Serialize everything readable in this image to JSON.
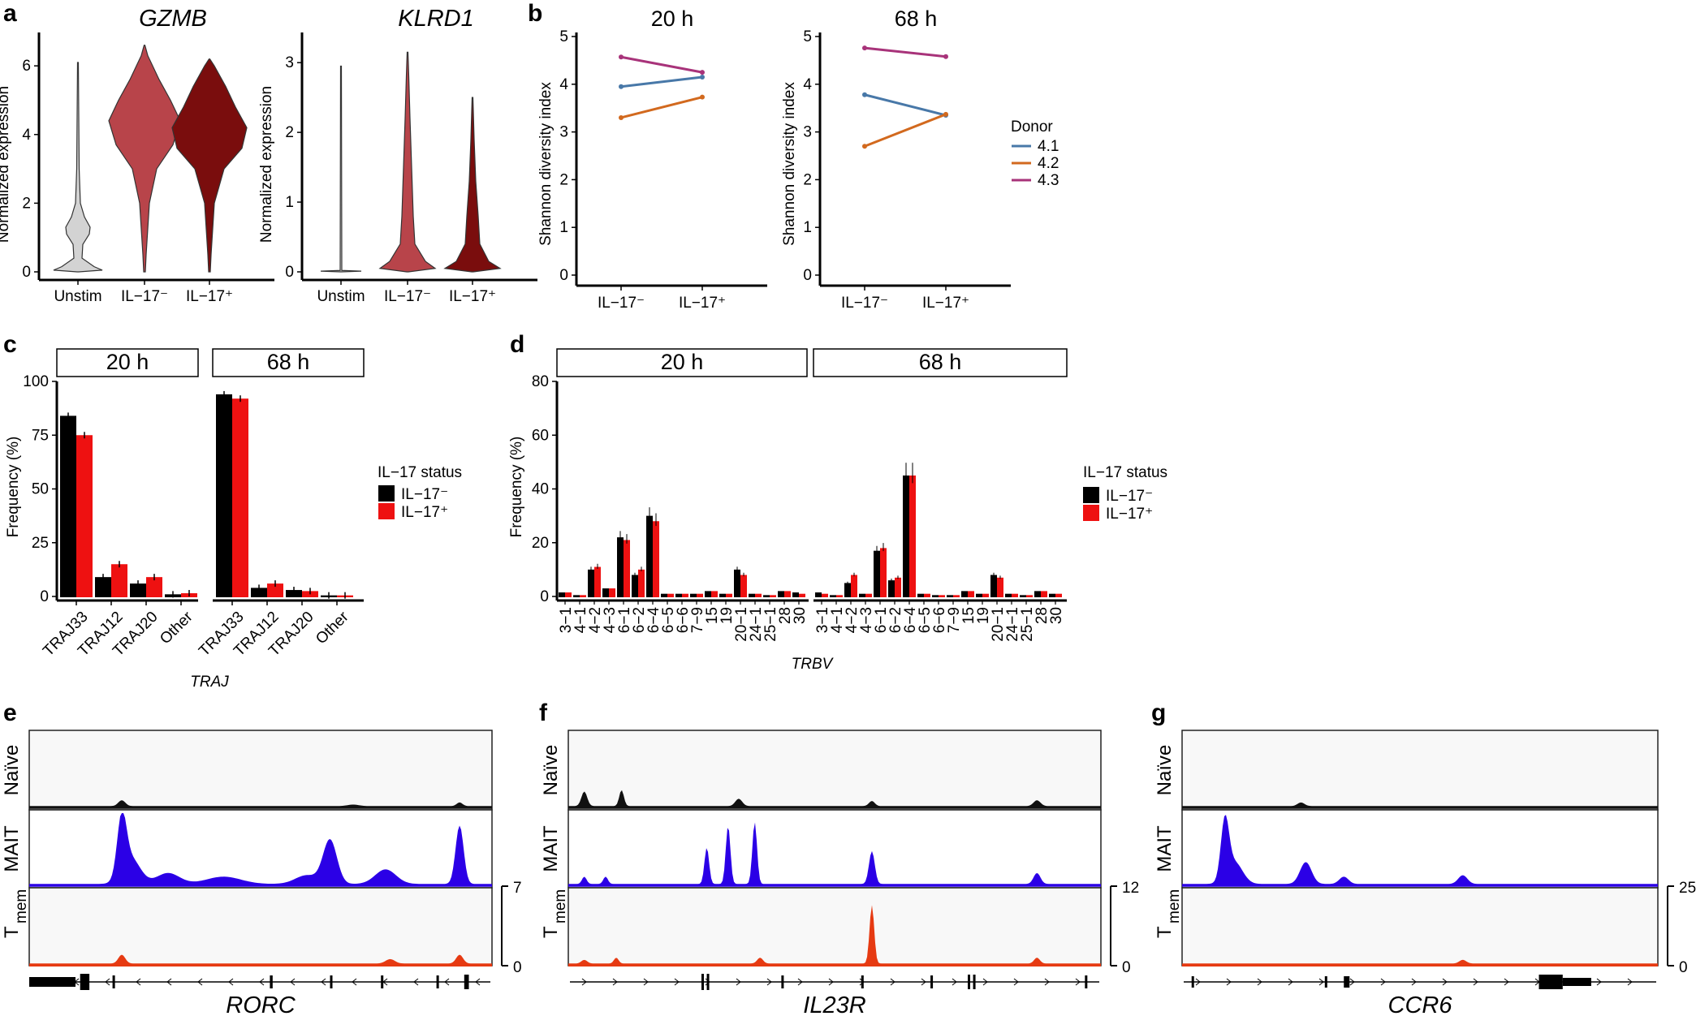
{
  "panels": {
    "a": "a",
    "b": "b",
    "c": "c",
    "d": "d",
    "e": "e",
    "f": "f",
    "g": "g"
  },
  "colors": {
    "unstim": "#d3d3d3",
    "il17neg_violin": "#b8444a",
    "il17pos_violin": "#7a0d0d",
    "donor41": "#4878a8",
    "donor42": "#d2691e",
    "donor43": "#a8337a",
    "bar_neg": "#000000",
    "bar_pos": "#ee1111",
    "naive": "#111111",
    "mait": "#2b00e6",
    "tmem": "#e63a12"
  },
  "panel_a": {
    "ylabel": "Normalized expression",
    "categories": [
      "Unstim",
      "IL−17⁻",
      "IL−17⁺"
    ],
    "gzmb": {
      "gene": "GZMB",
      "ticks": [
        "0",
        "2",
        "4",
        "6"
      ]
    },
    "klrd1": {
      "gene": "KLRD1",
      "ticks": [
        "0",
        "1",
        "2",
        "3"
      ]
    }
  },
  "panel_b": {
    "ylabel": "Shannon diversity index",
    "ticks": [
      "0",
      "1",
      "2",
      "3",
      "4",
      "5"
    ],
    "categories": [
      "IL−17⁻",
      "IL−17⁺"
    ],
    "legend_title": "Donor",
    "donors": [
      "4.1",
      "4.2",
      "4.3"
    ]
  },
  "panel_c": {
    "strips": [
      "20 h",
      "68 h"
    ],
    "ylabel": "Frequency (%)",
    "xlabel": "TRAJ",
    "ticks": [
      "0",
      "25",
      "50",
      "75",
      "100"
    ],
    "categories": [
      "TRAJ33",
      "TRAJ12",
      "TRAJ20",
      "Other"
    ],
    "legend_title": "IL−17 status",
    "legend": [
      "IL−17⁻",
      "IL−17⁺"
    ]
  },
  "panel_d": {
    "strips": [
      "20 h",
      "68 h"
    ],
    "ylabel": "Frequency (%)",
    "xlabel": "TRBV",
    "ticks": [
      "0",
      "20",
      "40",
      "60",
      "80"
    ],
    "categories": [
      "3−1",
      "4−1",
      "4−2",
      "4−3",
      "6−1",
      "6−2",
      "6−4",
      "6−5",
      "6−6",
      "7−9",
      "15",
      "19",
      "20−1",
      "24−1",
      "25−1",
      "28",
      "30"
    ],
    "legend_title": "IL−17 status",
    "legend": [
      "IL−17⁻",
      "IL−17⁺"
    ]
  },
  "panel_tracks": {
    "rows": [
      "Naïve",
      "MAIT",
      "T"
    ],
    "rows_sub": "mem",
    "e": {
      "gene": "RORC",
      "scale_max": "7",
      "scale_min": "0"
    },
    "f": {
      "gene": "IL23R",
      "scale_max": "12",
      "scale_min": "0"
    },
    "g": {
      "gene": "CCR6",
      "scale_max": "25",
      "scale_min": "0"
    }
  },
  "chart_data": [
    {
      "type": "violin",
      "title": "GZMB",
      "ylabel": "Normalized expression",
      "categories": [
        "Unstim",
        "IL−17⁻",
        "IL−17⁺"
      ],
      "ylim": [
        0,
        6.5
      ],
      "median": [
        0.2,
        4.5,
        4.2
      ]
    },
    {
      "type": "violin",
      "title": "KLRD1",
      "ylabel": "Normalized expression",
      "categories": [
        "Unstim",
        "IL−17⁻",
        "IL−17⁺"
      ],
      "ylim": [
        0,
        3.2
      ],
      "median": [
        0,
        0.1,
        0.1
      ]
    },
    {
      "type": "line",
      "title": "20 h",
      "ylabel": "Shannon diversity index",
      "x": [
        "IL−17⁻",
        "IL−17⁺"
      ],
      "ylim": [
        0,
        5
      ],
      "series": [
        {
          "name": "4.1",
          "values": [
            3.95,
            4.15
          ]
        },
        {
          "name": "4.2",
          "values": [
            3.3,
            3.73
          ]
        },
        {
          "name": "4.3",
          "values": [
            4.57,
            4.25
          ]
        }
      ]
    },
    {
      "type": "line",
      "title": "68 h",
      "ylabel": "Shannon diversity index",
      "x": [
        "IL−17⁻",
        "IL−17⁺"
      ],
      "ylim": [
        0,
        5
      ],
      "series": [
        {
          "name": "4.1",
          "values": [
            3.78,
            3.35
          ]
        },
        {
          "name": "4.2",
          "values": [
            2.7,
            3.37
          ]
        },
        {
          "name": "4.3",
          "values": [
            4.76,
            4.58
          ]
        }
      ]
    },
    {
      "type": "bar",
      "facets": [
        "20 h",
        "68 h"
      ],
      "xlabel": "TRAJ",
      "ylabel": "Frequency (%)",
      "ylim": [
        0,
        100
      ],
      "categories": [
        "TRAJ33",
        "TRAJ12",
        "TRAJ20",
        "Other"
      ],
      "series": [
        {
          "name": "IL−17⁻",
          "facet": "20 h",
          "values": [
            84,
            9,
            6,
            1
          ]
        },
        {
          "name": "IL−17⁺",
          "facet": "20 h",
          "values": [
            75,
            15,
            9,
            1.5
          ]
        },
        {
          "name": "IL−17⁻",
          "facet": "68 h",
          "values": [
            94,
            4,
            3,
            0.5
          ]
        },
        {
          "name": "IL−17⁺",
          "facet": "68 h",
          "values": [
            92,
            6,
            2.5,
            0.5
          ]
        }
      ]
    },
    {
      "type": "bar",
      "facets": [
        "20 h",
        "68 h"
      ],
      "xlabel": "TRBV",
      "ylabel": "Frequency (%)",
      "ylim": [
        0,
        80
      ],
      "categories": [
        "3−1",
        "4−1",
        "4−2",
        "4−3",
        "6−1",
        "6−2",
        "6−4",
        "6−5",
        "6−6",
        "7−9",
        "15",
        "19",
        "20−1",
        "24−1",
        "25−1",
        "28",
        "30"
      ],
      "series": [
        {
          "name": "IL−17⁻",
          "facet": "20 h",
          "values": [
            1.5,
            0.5,
            10,
            3,
            22,
            8,
            30,
            1,
            1,
            1,
            2,
            1,
            10,
            1,
            0.5,
            2,
            1.5
          ]
        },
        {
          "name": "IL−17⁺",
          "facet": "20 h",
          "values": [
            1.5,
            0.5,
            11,
            3,
            21,
            10,
            28,
            1,
            1,
            1,
            2,
            1,
            8,
            1,
            0.5,
            2,
            1
          ]
        },
        {
          "name": "IL−17⁻",
          "facet": "68 h",
          "values": [
            1.5,
            0.5,
            5,
            1,
            17,
            6,
            45,
            1,
            0.5,
            0.5,
            2,
            1,
            8,
            1,
            0.5,
            2,
            1
          ]
        },
        {
          "name": "IL−17⁺",
          "facet": "68 h",
          "values": [
            1,
            0.5,
            8,
            1,
            18,
            7,
            45,
            1,
            0.5,
            0.5,
            2,
            1,
            7,
            1,
            0.5,
            2,
            1
          ]
        }
      ]
    }
  ]
}
